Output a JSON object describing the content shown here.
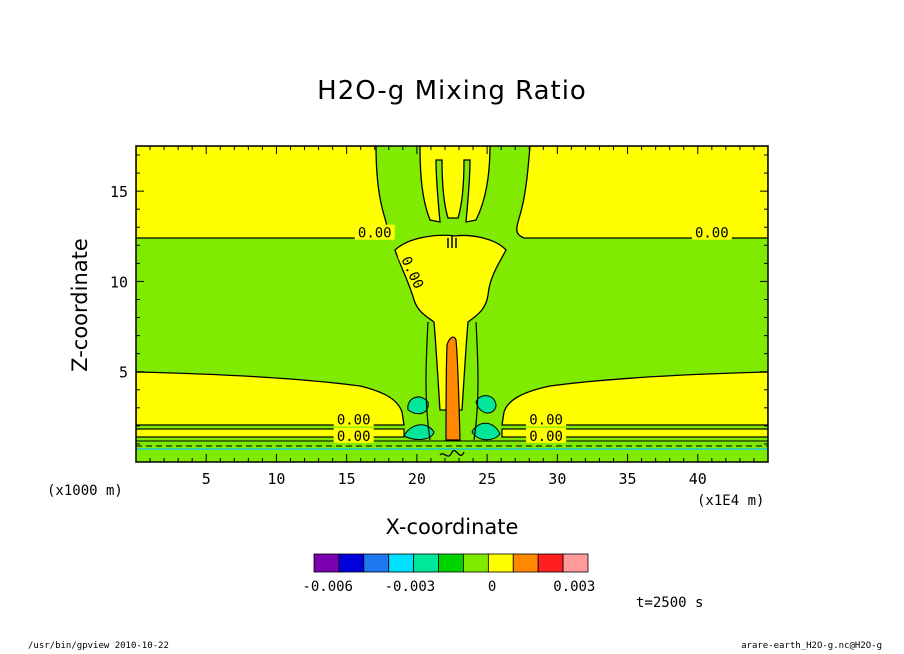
{
  "chart_data": {
    "type": "contour",
    "title": "H2O-g Mixing Ratio",
    "xlabel": "X-coordinate",
    "ylabel": "Z-coordinate",
    "x_unit_note": "(x1E4 m)",
    "y_unit_note": "(x1000 m)",
    "xlim": [
      0,
      45
    ],
    "ylim": [
      0,
      17.5
    ],
    "xticks": [
      "5",
      "10",
      "15",
      "20",
      "25",
      "30",
      "35",
      "40"
    ],
    "yticks": [
      "5",
      "10",
      "15"
    ],
    "contour_labels": [
      "0.00",
      "0.00",
      "0.00",
      "0.00",
      "0.00",
      "0.00",
      "0.00"
    ],
    "colorbar": {
      "colors": [
        "#7b00b0",
        "#0000dd",
        "#1e78f0",
        "#00e0ff",
        "#00e69a",
        "#00d400",
        "#80ea00",
        "#ffff00",
        "#ff8800",
        "#ff1f1f",
        "#ff9a9a"
      ],
      "tick_labels": [
        "-0.006",
        "-0.003",
        "0",
        "0.003"
      ],
      "tick_values": [
        -0.006,
        -0.003,
        0,
        0.003
      ],
      "vmin": -0.0065,
      "vmax": 0.0035
    },
    "fills": {
      "background": "#80ea00",
      "positive": "#ffff00",
      "core": "#ff8800",
      "negative": "#00e69a"
    }
  },
  "time_label": "t=2500 s",
  "footer_left": "/usr/bin/gpview  2010-10-22",
  "footer_right": "arare-earth_H2O-g.nc@H2O-g"
}
